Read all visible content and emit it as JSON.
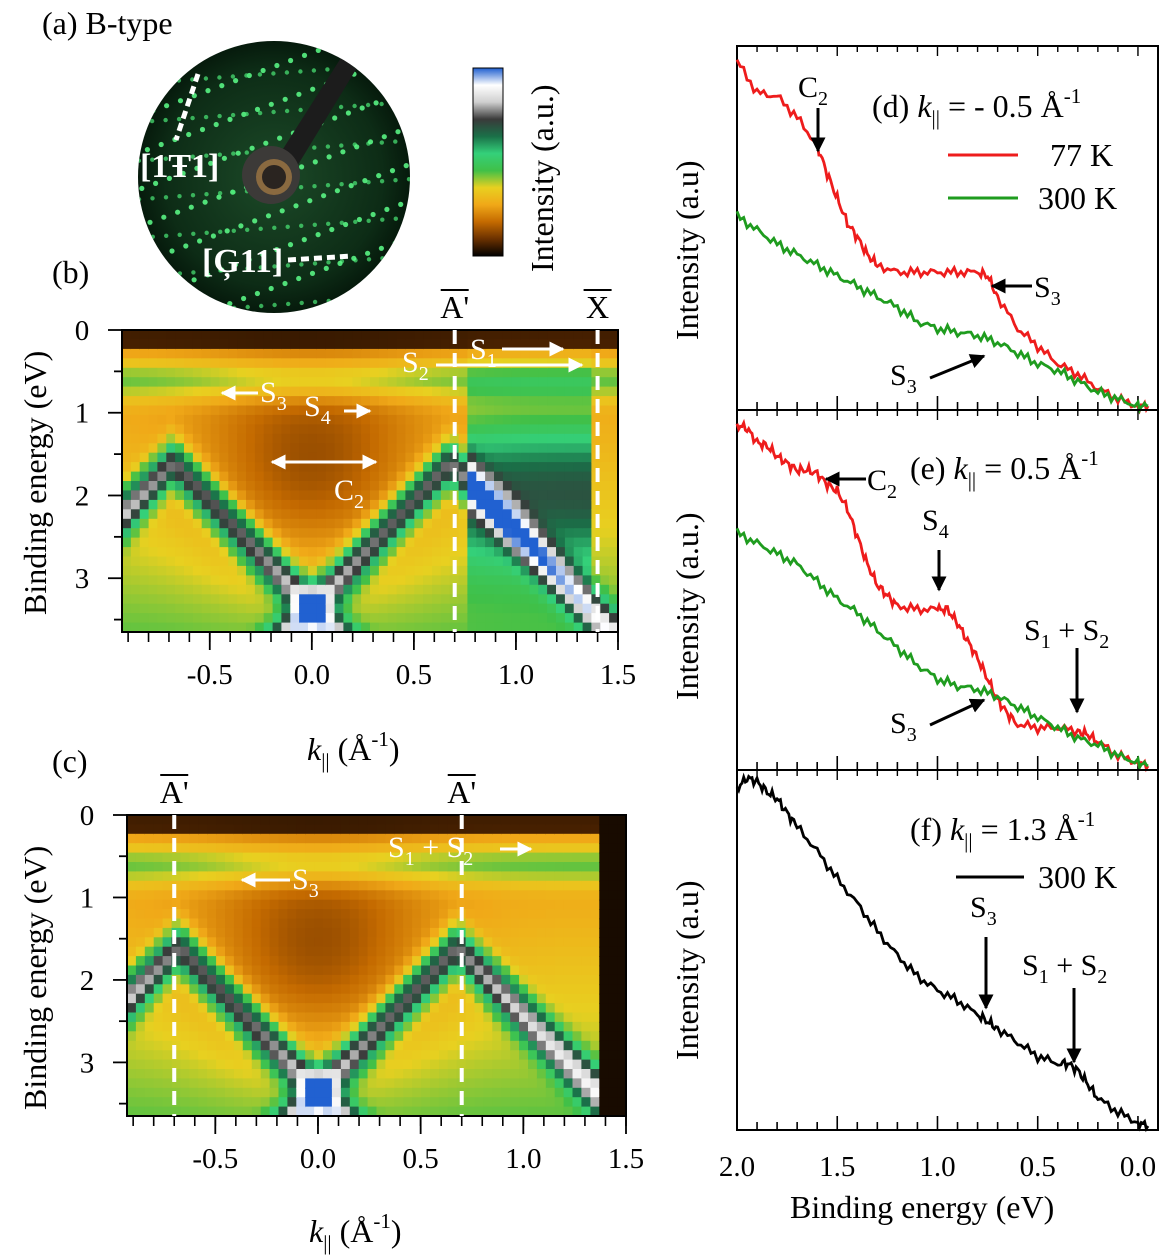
{
  "panel_a": {
    "label": "(a) B-type",
    "dir1": "[1Ŧ1]",
    "dir2": "[Ģ11]",
    "colorbar_label": "Intensity (a.u.)",
    "colormap": [
      "#000000",
      "#6b3100",
      "#c46a00",
      "#f0a818",
      "#e8d020",
      "#40c048",
      "#34d07a",
      "#1a7048",
      "#3a3a3a",
      "#cfcfcf",
      "#ffffff",
      "#1f5fd0"
    ]
  },
  "chart_data": [
    {
      "id": "b",
      "type": "heatmap",
      "label": "(b)",
      "ylabel": "Binding energy (eV)",
      "xlabel": "k|| (Å-1)",
      "xlim": [
        -0.93,
        1.5
      ],
      "ylim": [
        0,
        3.65
      ],
      "x_ticks": [
        "-0.5",
        "0.0",
        "0.5",
        "1.0",
        "1.5"
      ],
      "y_ticks": [
        "0",
        "1",
        "2",
        "3"
      ],
      "dashed_lines": [
        {
          "x": 0.7,
          "label": "A'"
        },
        {
          "x": 1.4,
          "label": "X"
        }
      ],
      "annotations": [
        "S1",
        "S2",
        "S3",
        "S4",
        "C2"
      ]
    },
    {
      "id": "c",
      "type": "heatmap",
      "label": "(c)",
      "ylabel": "Binding energy (eV)",
      "xlabel": "k|| (Å-1)",
      "xlim": [
        -0.93,
        1.5
      ],
      "ylim": [
        0,
        3.65
      ],
      "x_ticks": [
        "-0.5",
        "0.0",
        "0.5",
        "1.0",
        "1.5"
      ],
      "y_ticks": [
        "0",
        "1",
        "2",
        "3"
      ],
      "dashed_lines": [
        {
          "x": -0.7,
          "label": "A'"
        },
        {
          "x": 0.7,
          "label": "A'"
        }
      ],
      "annotations": [
        "S3",
        "S1 + S2"
      ]
    },
    {
      "id": "d",
      "type": "line",
      "label": "(d)",
      "k_value": "= - 0.5 Å",
      "ylabel": "Intensity (a.u)",
      "xlim": [
        2.0,
        -0.1
      ],
      "legend": "top-right",
      "series": [
        {
          "name": "77 K",
          "color": "#ee1c1c",
          "x": [
            2.0,
            1.9,
            1.8,
            1.7,
            1.6,
            1.55,
            1.5,
            1.45,
            1.4,
            1.35,
            1.3,
            1.2,
            1.1,
            1.0,
            0.9,
            0.8,
            0.75,
            0.7,
            0.6,
            0.5,
            0.4,
            0.3,
            0.2,
            0.1,
            0.0,
            -0.05
          ],
          "y": [
            0.98,
            0.89,
            0.88,
            0.82,
            0.74,
            0.66,
            0.59,
            0.52,
            0.48,
            0.43,
            0.4,
            0.38,
            0.38,
            0.38,
            0.38,
            0.38,
            0.37,
            0.31,
            0.22,
            0.17,
            0.12,
            0.09,
            0.05,
            0.02,
            0.0,
            0.0
          ]
        },
        {
          "name": "300 K",
          "color": "#1f9c1f",
          "x": [
            2.0,
            1.9,
            1.8,
            1.7,
            1.6,
            1.5,
            1.4,
            1.3,
            1.2,
            1.1,
            1.0,
            0.9,
            0.8,
            0.7,
            0.6,
            0.5,
            0.4,
            0.3,
            0.2,
            0.1,
            0.0,
            -0.05
          ],
          "y": [
            0.54,
            0.5,
            0.46,
            0.43,
            0.4,
            0.37,
            0.34,
            0.31,
            0.28,
            0.24,
            0.22,
            0.21,
            0.2,
            0.18,
            0.15,
            0.12,
            0.1,
            0.07,
            0.04,
            0.02,
            0.0,
            0.0
          ]
        }
      ],
      "annotations": [
        "C2",
        "S3",
        "S3"
      ]
    },
    {
      "id": "e",
      "type": "line",
      "label": "(e)",
      "k_value": "= 0.5 Å",
      "ylabel": "Intensity (a.u.)",
      "xlim": [
        2.0,
        -0.1
      ],
      "series": [
        {
          "name": "77 K",
          "color": "#ee1c1c",
          "x": [
            2.0,
            1.95,
            1.9,
            1.85,
            1.8,
            1.75,
            1.7,
            1.65,
            1.6,
            1.55,
            1.5,
            1.45,
            1.4,
            1.35,
            1.3,
            1.25,
            1.2,
            1.1,
            1.0,
            0.95,
            0.9,
            0.85,
            0.8,
            0.75,
            0.7,
            0.65,
            0.6,
            0.5,
            0.4,
            0.3,
            0.25,
            0.2,
            0.1,
            0.0,
            -0.05
          ],
          "y": [
            0.98,
            0.97,
            0.93,
            0.92,
            0.89,
            0.87,
            0.85,
            0.85,
            0.84,
            0.81,
            0.79,
            0.74,
            0.66,
            0.58,
            0.52,
            0.49,
            0.46,
            0.45,
            0.45,
            0.45,
            0.41,
            0.36,
            0.31,
            0.25,
            0.19,
            0.15,
            0.12,
            0.11,
            0.11,
            0.1,
            0.09,
            0.07,
            0.03,
            0.01,
            0.0
          ]
        },
        {
          "name": "300 K",
          "color": "#1f9c1f",
          "x": [
            2.0,
            1.9,
            1.8,
            1.7,
            1.6,
            1.5,
            1.4,
            1.3,
            1.2,
            1.1,
            1.0,
            0.9,
            0.8,
            0.7,
            0.6,
            0.5,
            0.4,
            0.3,
            0.2,
            0.1,
            0.0,
            -0.05
          ],
          "y": [
            0.67,
            0.64,
            0.61,
            0.58,
            0.53,
            0.48,
            0.44,
            0.39,
            0.34,
            0.29,
            0.25,
            0.23,
            0.22,
            0.2,
            0.17,
            0.14,
            0.11,
            0.08,
            0.06,
            0.03,
            0.01,
            0.0
          ]
        }
      ],
      "annotations": [
        "C2",
        "S4",
        "S1 + S2",
        "S3"
      ]
    },
    {
      "id": "f",
      "type": "line",
      "label": "(f)",
      "k_value": "= 1.3 Å",
      "ylabel": "Intensity (a.u)",
      "xlabel": "Binding energy (eV)",
      "xlim": [
        2.0,
        -0.1
      ],
      "x_ticks": [
        "2.0",
        "1.5",
        "1.0",
        "0.5",
        "0.0"
      ],
      "series": [
        {
          "name": "300 K",
          "color": "#000000",
          "x": [
            2.0,
            1.95,
            1.9,
            1.85,
            1.8,
            1.75,
            1.7,
            1.6,
            1.5,
            1.4,
            1.3,
            1.2,
            1.1,
            1.0,
            0.9,
            0.8,
            0.75,
            0.7,
            0.6,
            0.5,
            0.4,
            0.35,
            0.3,
            0.25,
            0.2,
            0.1,
            0.0,
            -0.05
          ],
          "y": [
            0.97,
            1.0,
            0.99,
            0.96,
            0.94,
            0.9,
            0.86,
            0.79,
            0.71,
            0.64,
            0.56,
            0.49,
            0.43,
            0.39,
            0.36,
            0.32,
            0.3,
            0.28,
            0.24,
            0.2,
            0.18,
            0.18,
            0.16,
            0.12,
            0.08,
            0.04,
            0.01,
            0.0
          ]
        }
      ],
      "annotations": [
        "S3",
        "S1 + S2"
      ]
    }
  ]
}
